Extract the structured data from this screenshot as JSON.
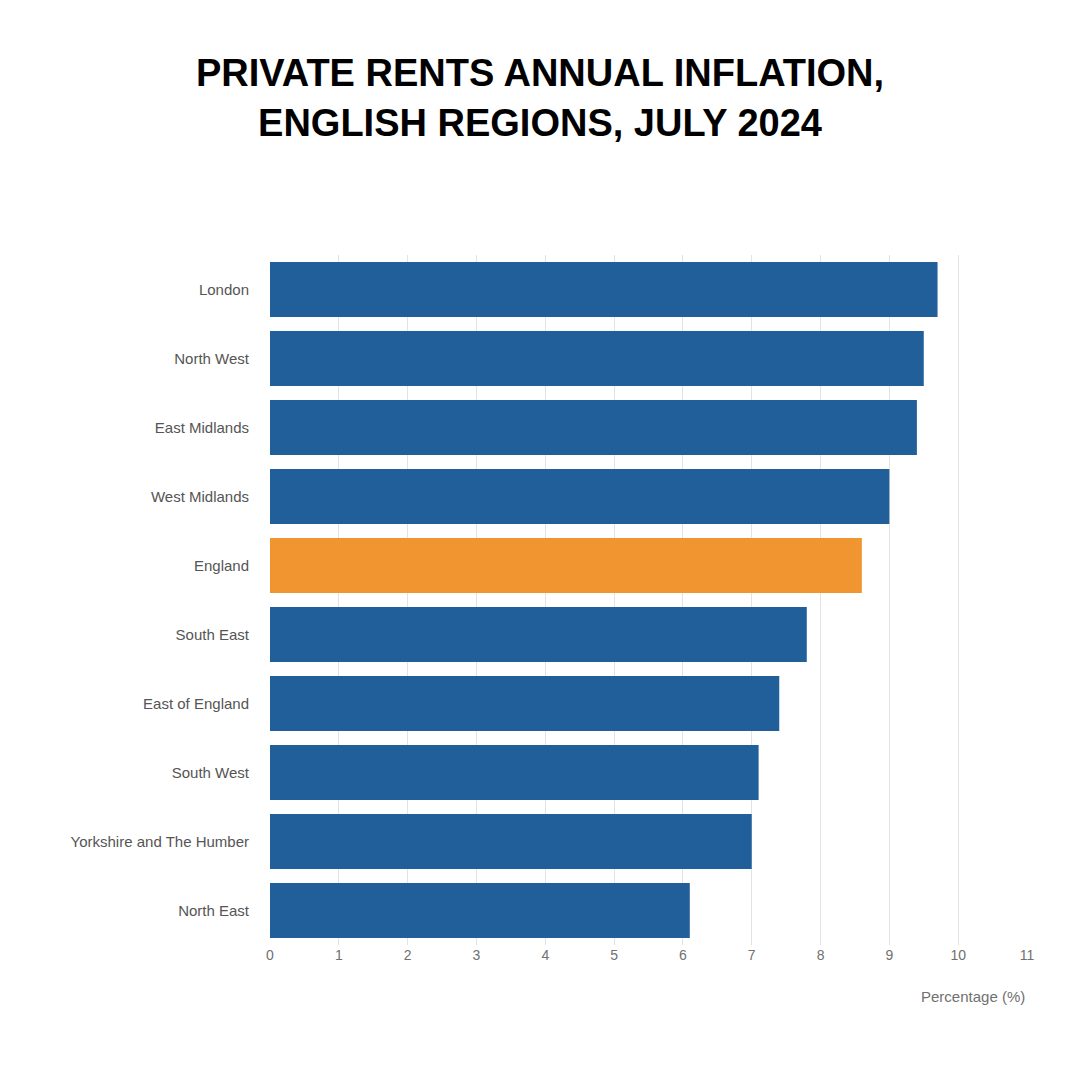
{
  "chart_data": {
    "type": "bar",
    "orientation": "horizontal",
    "title": "PRIVATE RENTS ANNUAL INFLATION, ENGLISH REGIONS, JULY 2024",
    "x_label": "Percentage (%)",
    "categories": [
      "London",
      "North West",
      "East Midlands",
      "West Midlands",
      "England",
      "South East",
      "East of England",
      "South West",
      "Yorkshire and The Humber",
      "North East"
    ],
    "values": [
      9.7,
      9.5,
      9.4,
      9.0,
      8.6,
      7.8,
      7.4,
      7.1,
      7.0,
      6.1
    ],
    "colors": [
      "#215f9a",
      "#215f9a",
      "#215f9a",
      "#215f9a",
      "#f0952f",
      "#215f9a",
      "#215f9a",
      "#215f9a",
      "#215f9a",
      "#215f9a"
    ],
    "xlim": [
      0,
      11
    ],
    "xticks": [
      0,
      1,
      2,
      3,
      4,
      5,
      6,
      7,
      8,
      9,
      10,
      11
    ],
    "grid": true
  }
}
